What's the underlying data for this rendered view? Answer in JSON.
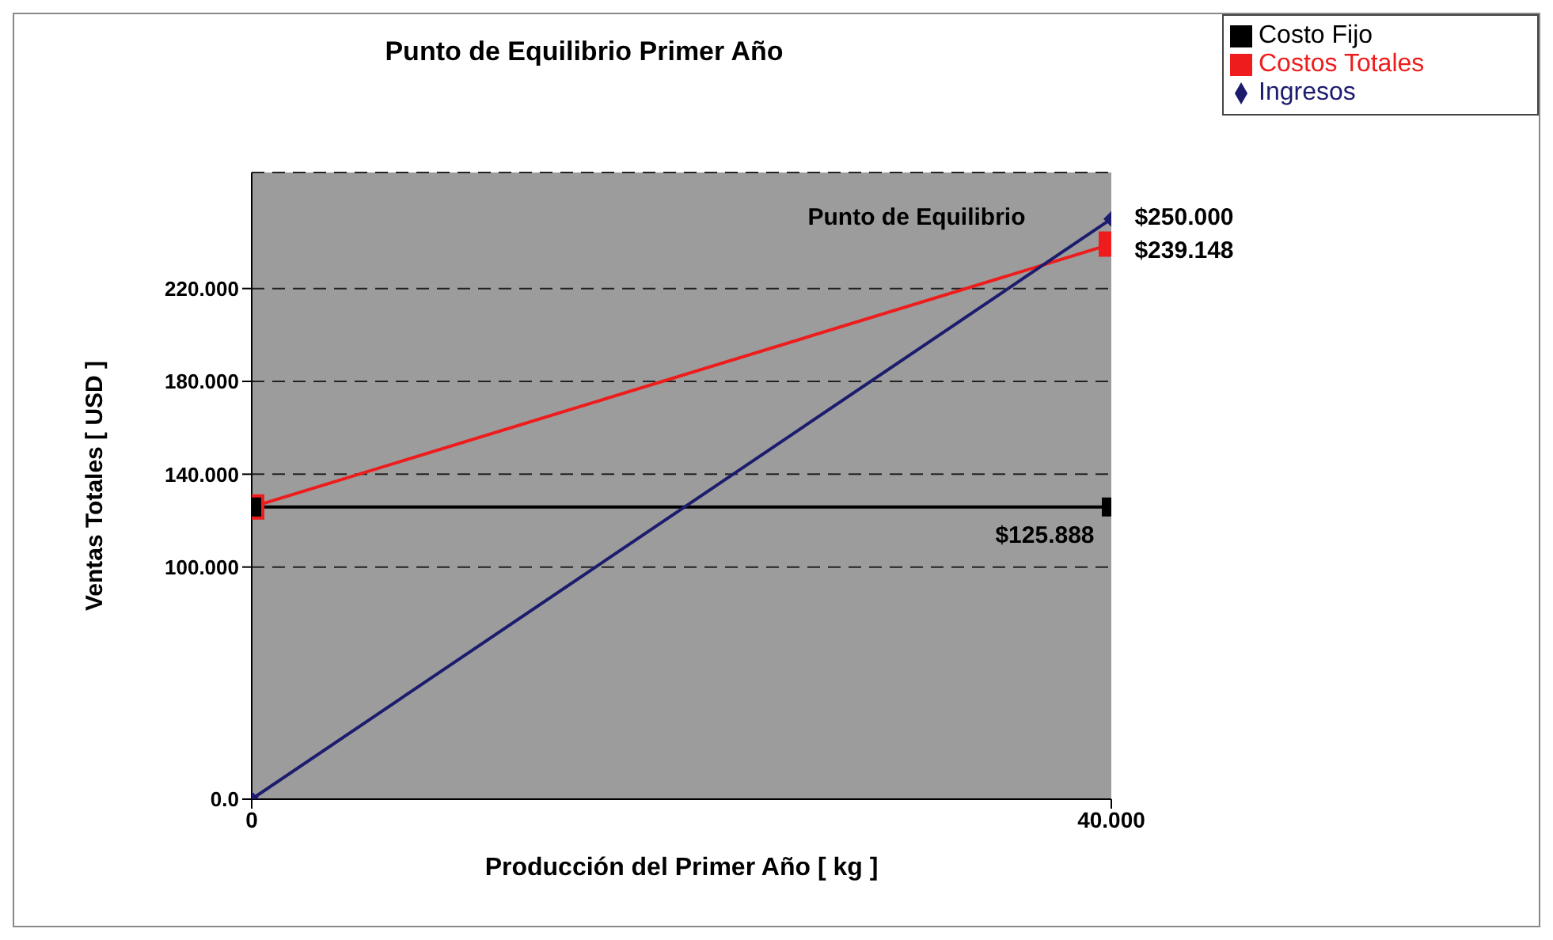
{
  "chart_data": {
    "type": "line",
    "title": "Punto de Equilibrio Primer Año",
    "xlabel": "Producción del Primer Año [ kg ]",
    "ylabel": "Ventas Totales [ USD ]",
    "x": [
      0,
      40
    ],
    "series": [
      {
        "name": "Costos Totales",
        "color": "#ee1c1c",
        "values": [
          125.888,
          239.148
        ],
        "marker": "square"
      },
      {
        "name": "Costo Fijo",
        "color": "#000000",
        "values": [
          125.888,
          125.888
        ],
        "marker": "square"
      },
      {
        "name": "Ingresos",
        "color": "#1c1c6e",
        "values": [
          0,
          250
        ],
        "marker": "diamond"
      }
    ],
    "xlim": [
      0,
      40
    ],
    "xticks": [
      0,
      {
        "value": 40,
        "label": "40.000"
      }
    ],
    "ylim": [
      0,
      270
    ],
    "yticks": [
      {
        "value": 0,
        "label": "0.0"
      },
      {
        "value": 100,
        "label": "100.000"
      },
      {
        "value": 140,
        "label": "140.000"
      },
      {
        "value": 180,
        "label": "180.000"
      },
      {
        "value": 220,
        "label": "220.000"
      }
    ],
    "grid": "y",
    "legend": "top right",
    "annotations": [
      "$250.000",
      "Punto de Equilibrio",
      "$239.148",
      "$125.888"
    ]
  }
}
